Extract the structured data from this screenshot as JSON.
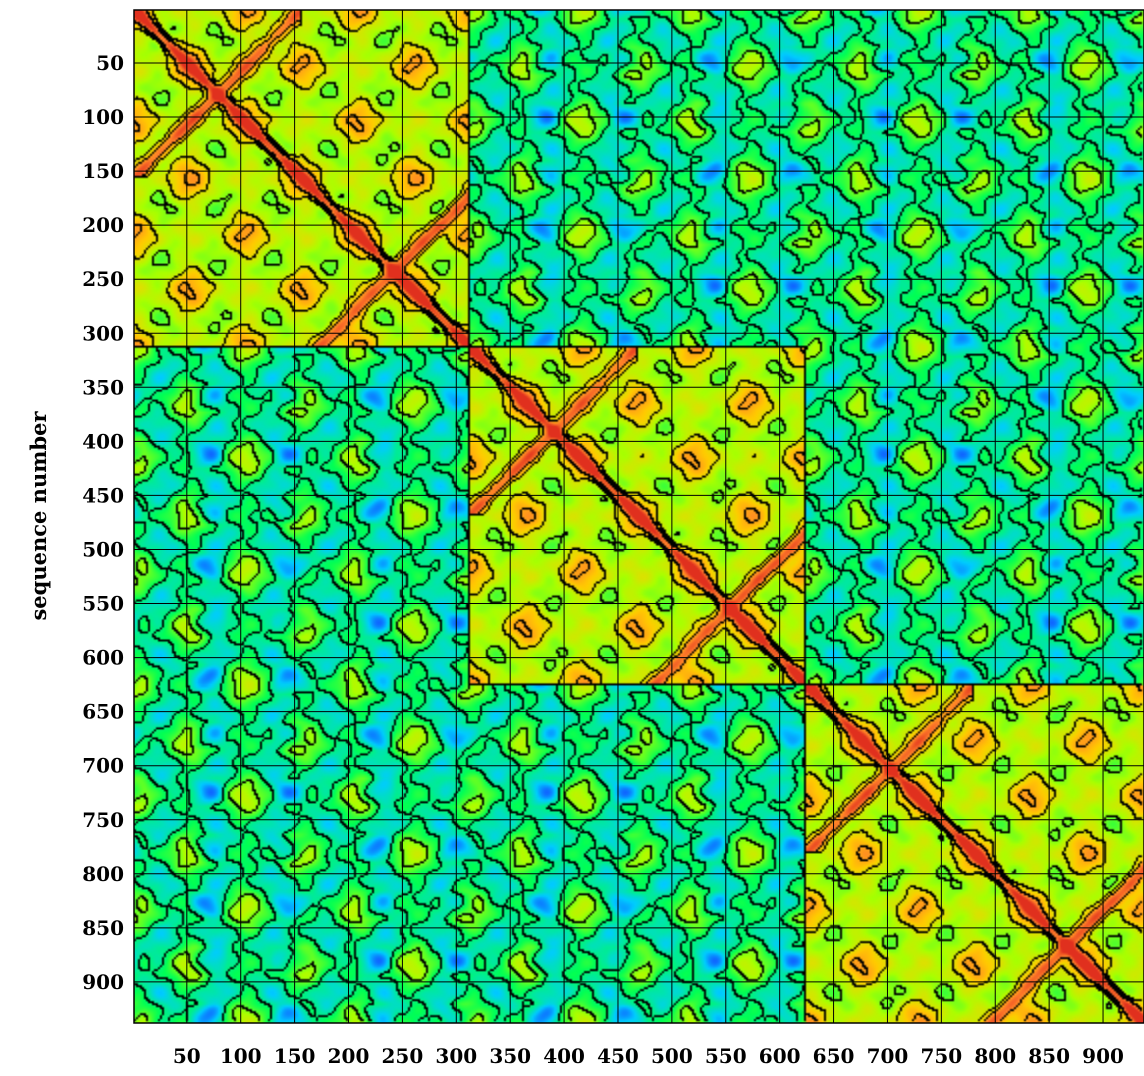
{
  "chart_data": {
    "type": "heatmap",
    "title": "",
    "xlabel": "",
    "ylabel": "sequence number",
    "xlim": [
      1,
      939
    ],
    "ylim": [
      1,
      939
    ],
    "y_direction": "top-to-bottom",
    "x_ticks": [
      50,
      100,
      150,
      200,
      250,
      300,
      350,
      400,
      450,
      500,
      550,
      600,
      650,
      700,
      750,
      800,
      850,
      900
    ],
    "y_ticks": [
      50,
      100,
      150,
      200,
      250,
      300,
      350,
      400,
      450,
      500,
      550,
      600,
      650,
      700,
      750,
      800,
      850,
      900
    ],
    "grid": true,
    "grid_color": "#000000",
    "contour_lines": true,
    "colorscale": [
      "#1a1aff",
      "#00ccff",
      "#00ff55",
      "#aaff00",
      "#ffcc00",
      "#ff7f2a",
      "#e0301e"
    ],
    "block_boundaries": [
      1,
      313,
      626,
      939
    ],
    "block_self_cross_centers": [
      [
        78,
        78
      ],
      [
        244,
        244
      ],
      [
        391,
        391
      ],
      [
        555,
        555
      ],
      [
        704,
        704
      ],
      [
        868,
        868
      ]
    ],
    "low_similarity_blocks": [
      {
        "rows": [
          1,
          313
        ],
        "cols": [
          313,
          626
        ]
      },
      {
        "rows": [
          1,
          313
        ],
        "cols": [
          626,
          939
        ]
      },
      {
        "rows": [
          313,
          626
        ],
        "cols": [
          1,
          313
        ]
      },
      {
        "rows": [
          313,
          626
        ],
        "cols": [
          626,
          939
        ]
      },
      {
        "rows": [
          626,
          939
        ],
        "cols": [
          1,
          313
        ]
      },
      {
        "rows": [
          626,
          939
        ],
        "cols": [
          313,
          626
        ]
      }
    ],
    "value_range": [
      0,
      1
    ]
  }
}
